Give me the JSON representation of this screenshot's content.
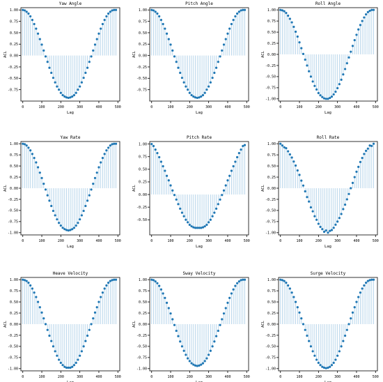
{
  "chart_data": [
    {
      "type": "stem",
      "title": "Yaw Angle",
      "xlabel": "Lag",
      "ylabel": "ACL",
      "xlim": [
        -10,
        510
      ],
      "ylim": [
        -1,
        1.05
      ],
      "xticks": [
        "0",
        "100",
        "200",
        "300",
        "400",
        "500"
      ],
      "yticks": [
        "1.00",
        "0.75",
        "0.50",
        "0.25",
        "0.00",
        "-0.25",
        "-0.50",
        "-0.75"
      ],
      "x": [
        0,
        10,
        20,
        30,
        40,
        50,
        60,
        70,
        80,
        90,
        100,
        110,
        120,
        130,
        140,
        150,
        160,
        170,
        180,
        190,
        200,
        210,
        220,
        230,
        240,
        250,
        260,
        270,
        280,
        290,
        300,
        310,
        320,
        330,
        340,
        350,
        360,
        370,
        380,
        390,
        400,
        410,
        420,
        430,
        440,
        450,
        460,
        470,
        480,
        490
      ],
      "values": [
        1.0,
        0.99,
        0.96,
        0.92,
        0.86,
        0.78,
        0.69,
        0.59,
        0.48,
        0.36,
        0.24,
        0.11,
        -0.02,
        -0.14,
        -0.27,
        -0.38,
        -0.49,
        -0.59,
        -0.68,
        -0.75,
        -0.82,
        -0.87,
        -0.9,
        -0.92,
        -0.93,
        -0.92,
        -0.9,
        -0.87,
        -0.82,
        -0.75,
        -0.68,
        -0.59,
        -0.49,
        -0.38,
        -0.27,
        -0.14,
        -0.02,
        0.11,
        0.24,
        0.36,
        0.48,
        0.59,
        0.69,
        0.78,
        0.86,
        0.92,
        0.96,
        0.99,
        1.0,
        1.0
      ]
    },
    {
      "type": "stem",
      "title": "Pitch Angle",
      "xlabel": "Lag",
      "ylabel": "ACL",
      "xlim": [
        -10,
        510
      ],
      "ylim": [
        -1,
        1.05
      ],
      "xticks": [
        "0",
        "100",
        "200",
        "300",
        "400",
        "500"
      ],
      "yticks": [
        "1.00",
        "0.75",
        "0.50",
        "0.25",
        "0.00",
        "-0.25",
        "-0.50",
        "-0.75"
      ],
      "x": [
        0,
        10,
        20,
        30,
        40,
        50,
        60,
        70,
        80,
        90,
        100,
        110,
        120,
        130,
        140,
        150,
        160,
        170,
        180,
        190,
        200,
        210,
        220,
        230,
        240,
        250,
        260,
        270,
        280,
        290,
        300,
        310,
        320,
        330,
        340,
        350,
        360,
        370,
        380,
        390,
        400,
        410,
        420,
        430,
        440,
        450,
        460,
        470,
        480,
        490
      ],
      "values": [
        1.0,
        0.99,
        0.96,
        0.92,
        0.86,
        0.78,
        0.69,
        0.59,
        0.48,
        0.36,
        0.24,
        0.11,
        -0.02,
        -0.14,
        -0.27,
        -0.38,
        -0.49,
        -0.59,
        -0.68,
        -0.75,
        -0.82,
        -0.87,
        -0.9,
        -0.92,
        -0.93,
        -0.92,
        -0.9,
        -0.87,
        -0.82,
        -0.75,
        -0.68,
        -0.59,
        -0.49,
        -0.38,
        -0.27,
        -0.14,
        -0.02,
        0.11,
        0.24,
        0.36,
        0.48,
        0.59,
        0.69,
        0.78,
        0.86,
        0.92,
        0.96,
        0.99,
        1.0,
        1.0
      ]
    },
    {
      "type": "stem",
      "title": "Roll Angle",
      "xlabel": "Lag",
      "ylabel": "ACL",
      "xlim": [
        -10,
        510
      ],
      "ylim": [
        -1.05,
        1.05
      ],
      "xticks": [
        "0",
        "100",
        "200",
        "300",
        "400",
        "500"
      ],
      "yticks": [
        "1.00",
        "0.75",
        "0.50",
        "0.25",
        "0.00",
        "-0.25",
        "-0.50",
        "-0.75",
        "-1.00"
      ],
      "x": [
        0,
        10,
        20,
        30,
        40,
        50,
        60,
        70,
        80,
        90,
        100,
        110,
        120,
        130,
        140,
        150,
        160,
        170,
        180,
        190,
        200,
        210,
        220,
        230,
        240,
        250,
        260,
        270,
        280,
        290,
        300,
        310,
        320,
        330,
        340,
        350,
        360,
        370,
        380,
        390,
        400,
        410,
        420,
        430,
        440,
        450,
        460,
        470,
        480,
        490
      ],
      "values": [
        1.0,
        0.99,
        0.97,
        0.93,
        0.87,
        0.8,
        0.72,
        0.62,
        0.51,
        0.4,
        0.27,
        0.14,
        0.01,
        -0.12,
        -0.25,
        -0.38,
        -0.5,
        -0.61,
        -0.71,
        -0.79,
        -0.87,
        -0.92,
        -0.96,
        -0.99,
        -1.0,
        -1.0,
        -0.98,
        -0.95,
        -0.9,
        -0.84,
        -0.76,
        -0.67,
        -0.57,
        -0.45,
        -0.33,
        -0.2,
        -0.07,
        0.06,
        0.19,
        0.32,
        0.44,
        0.56,
        0.66,
        0.75,
        0.83,
        0.9,
        0.95,
        0.98,
        1.0,
        1.0
      ]
    },
    {
      "type": "stem",
      "title": "Yaw Rate",
      "xlabel": "Lag",
      "ylabel": "ACL",
      "xlim": [
        -10,
        510
      ],
      "ylim": [
        -1.05,
        1.05
      ],
      "xticks": [
        "0",
        "100",
        "200",
        "300",
        "400",
        "500"
      ],
      "yticks": [
        "1.00",
        "0.75",
        "0.50",
        "0.25",
        "0.00",
        "-0.25",
        "-0.50",
        "-0.75",
        "-1.00"
      ],
      "x": [
        0,
        10,
        20,
        30,
        40,
        50,
        60,
        70,
        80,
        90,
        100,
        110,
        120,
        130,
        140,
        150,
        160,
        170,
        180,
        190,
        200,
        210,
        220,
        230,
        240,
        250,
        260,
        270,
        280,
        290,
        300,
        310,
        320,
        330,
        340,
        350,
        360,
        370,
        380,
        390,
        400,
        410,
        420,
        430,
        440,
        450,
        460,
        470,
        480,
        490
      ],
      "values": [
        1.0,
        0.99,
        0.96,
        0.91,
        0.85,
        0.77,
        0.68,
        0.58,
        0.47,
        0.35,
        0.23,
        0.1,
        -0.03,
        -0.16,
        -0.28,
        -0.4,
        -0.51,
        -0.61,
        -0.7,
        -0.78,
        -0.84,
        -0.89,
        -0.92,
        -0.94,
        -0.95,
        -0.94,
        -0.92,
        -0.89,
        -0.84,
        -0.78,
        -0.7,
        -0.61,
        -0.51,
        -0.4,
        -0.28,
        -0.16,
        -0.03,
        0.1,
        0.23,
        0.35,
        0.47,
        0.58,
        0.68,
        0.77,
        0.85,
        0.91,
        0.96,
        0.99,
        1.0,
        1.0
      ]
    },
    {
      "type": "stem",
      "title": "Pitch Rate",
      "xlabel": "Lag",
      "ylabel": "ACL",
      "xlim": [
        -10,
        510
      ],
      "ylim": [
        -0.8,
        1.05
      ],
      "xticks": [
        "0",
        "100",
        "200",
        "300",
        "400",
        "500"
      ],
      "yticks": [
        "1.00",
        "0.75",
        "0.50",
        "0.25",
        "0.00",
        "-0.25",
        "-0.50"
      ],
      "x": [
        0,
        10,
        20,
        30,
        40,
        50,
        60,
        70,
        80,
        90,
        100,
        110,
        120,
        130,
        140,
        150,
        160,
        170,
        180,
        190,
        200,
        210,
        220,
        230,
        240,
        250,
        260,
        270,
        280,
        290,
        300,
        310,
        320,
        330,
        340,
        350,
        360,
        370,
        380,
        390,
        400,
        410,
        420,
        430,
        440,
        450,
        460,
        470,
        480,
        490
      ],
      "values": [
        1.0,
        0.96,
        0.89,
        0.82,
        0.74,
        0.65,
        0.56,
        0.47,
        0.37,
        0.28,
        0.18,
        0.08,
        -0.01,
        -0.1,
        -0.19,
        -0.28,
        -0.36,
        -0.43,
        -0.5,
        -0.55,
        -0.6,
        -0.63,
        -0.65,
        -0.66,
        -0.66,
        -0.66,
        -0.66,
        -0.65,
        -0.63,
        -0.6,
        -0.55,
        -0.5,
        -0.43,
        -0.36,
        -0.28,
        -0.19,
        -0.1,
        -0.01,
        0.08,
        0.18,
        0.28,
        0.37,
        0.47,
        0.56,
        0.65,
        0.74,
        0.82,
        0.89,
        0.96,
        0.98
      ]
    },
    {
      "type": "stem",
      "title": "Roll Rate",
      "xlabel": "Lag",
      "ylabel": "ACL",
      "xlim": [
        -10,
        510
      ],
      "ylim": [
        -1.05,
        1.05
      ],
      "xticks": [
        "0",
        "100",
        "200",
        "300",
        "400",
        "500"
      ],
      "yticks": [
        "1.00",
        "0.75",
        "0.50",
        "0.25",
        "0.00",
        "-0.25",
        "-0.50",
        "-0.75",
        "-1.00"
      ],
      "x": [
        0,
        10,
        20,
        30,
        40,
        50,
        60,
        70,
        80,
        90,
        100,
        110,
        120,
        130,
        140,
        150,
        160,
        170,
        180,
        190,
        200,
        210,
        220,
        230,
        240,
        250,
        260,
        270,
        280,
        290,
        300,
        310,
        320,
        330,
        340,
        350,
        360,
        370,
        380,
        390,
        400,
        410,
        420,
        430,
        440,
        450,
        460,
        470,
        480,
        490
      ],
      "values": [
        1.0,
        0.96,
        0.92,
        0.9,
        0.83,
        0.76,
        0.69,
        0.6,
        0.51,
        0.4,
        0.3,
        0.17,
        0.06,
        -0.07,
        -0.2,
        -0.3,
        -0.43,
        -0.52,
        -0.63,
        -0.71,
        -0.8,
        -0.87,
        -0.92,
        -0.98,
        -0.95,
        -1.0,
        -0.96,
        -0.94,
        -0.89,
        -0.82,
        -0.75,
        -0.67,
        -0.58,
        -0.47,
        -0.37,
        -0.25,
        -0.13,
        0.0,
        0.12,
        0.25,
        0.37,
        0.48,
        0.59,
        0.68,
        0.77,
        0.84,
        0.89,
        0.96,
        0.95,
        1.0
      ]
    },
    {
      "type": "stem",
      "title": "Heave Velocity",
      "xlabel": "Lag",
      "ylabel": "ACL",
      "xlim": [
        -10,
        510
      ],
      "ylim": [
        -1.05,
        1.05
      ],
      "xticks": [
        "0",
        "100",
        "200",
        "300",
        "400",
        "500"
      ],
      "yticks": [
        "1.00",
        "0.75",
        "0.50",
        "0.25",
        "0.00",
        "-0.25",
        "-0.50",
        "-0.75",
        "-1.00"
      ],
      "x": [
        0,
        10,
        20,
        30,
        40,
        50,
        60,
        70,
        80,
        90,
        100,
        110,
        120,
        130,
        140,
        150,
        160,
        170,
        180,
        190,
        200,
        210,
        220,
        230,
        240,
        250,
        260,
        270,
        280,
        290,
        300,
        310,
        320,
        330,
        340,
        350,
        360,
        370,
        380,
        390,
        400,
        410,
        420,
        430,
        440,
        450,
        460,
        470,
        480,
        490
      ],
      "values": [
        1.0,
        0.99,
        0.97,
        0.93,
        0.87,
        0.8,
        0.71,
        0.61,
        0.5,
        0.38,
        0.26,
        0.13,
        0.0,
        -0.13,
        -0.26,
        -0.38,
        -0.5,
        -0.61,
        -0.71,
        -0.8,
        -0.87,
        -0.92,
        -0.96,
        -0.98,
        -0.98,
        -0.98,
        -0.96,
        -0.92,
        -0.87,
        -0.8,
        -0.71,
        -0.61,
        -0.5,
        -0.38,
        -0.26,
        -0.13,
        0.0,
        0.13,
        0.26,
        0.38,
        0.5,
        0.61,
        0.71,
        0.8,
        0.87,
        0.93,
        0.97,
        0.99,
        1.0,
        1.0
      ]
    },
    {
      "type": "stem",
      "title": "Sway Velocity",
      "xlabel": "Lag",
      "ylabel": "ACL",
      "xlim": [
        -10,
        510
      ],
      "ylim": [
        -1.05,
        1.05
      ],
      "xticks": [
        "0",
        "100",
        "200",
        "300",
        "400",
        "500"
      ],
      "yticks": [
        "1.00",
        "0.75",
        "0.50",
        "0.25",
        "0.00",
        "-0.25",
        "-0.50",
        "-0.75",
        "-1.00"
      ],
      "x": [
        0,
        10,
        20,
        30,
        40,
        50,
        60,
        70,
        80,
        90,
        100,
        110,
        120,
        130,
        140,
        150,
        160,
        170,
        180,
        190,
        200,
        210,
        220,
        230,
        240,
        250,
        260,
        270,
        280,
        290,
        300,
        310,
        320,
        330,
        340,
        350,
        360,
        370,
        380,
        390,
        400,
        410,
        420,
        430,
        440,
        450,
        460,
        470,
        480,
        490
      ],
      "values": [
        1.0,
        0.99,
        0.96,
        0.92,
        0.86,
        0.78,
        0.69,
        0.59,
        0.48,
        0.36,
        0.24,
        0.11,
        -0.02,
        -0.15,
        -0.27,
        -0.39,
        -0.5,
        -0.6,
        -0.69,
        -0.77,
        -0.83,
        -0.88,
        -0.91,
        -0.93,
        -0.94,
        -0.93,
        -0.91,
        -0.88,
        -0.83,
        -0.77,
        -0.69,
        -0.6,
        -0.5,
        -0.39,
        -0.27,
        -0.15,
        -0.02,
        0.11,
        0.24,
        0.36,
        0.48,
        0.59,
        0.69,
        0.78,
        0.86,
        0.92,
        0.96,
        0.99,
        1.0,
        1.0
      ]
    },
    {
      "type": "stem",
      "title": "Surge Velocity",
      "xlabel": "Lag",
      "ylabel": "ACL",
      "xlim": [
        -10,
        510
      ],
      "ylim": [
        -1.05,
        1.05
      ],
      "xticks": [
        "0",
        "100",
        "200",
        "300",
        "400",
        "500"
      ],
      "yticks": [
        "1.00",
        "0.75",
        "0.50",
        "0.25",
        "0.00",
        "-0.25",
        "-0.50",
        "-0.75",
        "-1.00"
      ],
      "x": [
        0,
        10,
        20,
        30,
        40,
        50,
        60,
        70,
        80,
        90,
        100,
        110,
        120,
        130,
        140,
        150,
        160,
        170,
        180,
        190,
        200,
        210,
        220,
        230,
        240,
        250,
        260,
        270,
        280,
        290,
        300,
        310,
        320,
        330,
        340,
        350,
        360,
        370,
        380,
        390,
        400,
        410,
        420,
        430,
        440,
        450,
        460,
        470,
        480,
        490
      ],
      "values": [
        1.0,
        0.99,
        0.97,
        0.93,
        0.87,
        0.8,
        0.71,
        0.61,
        0.5,
        0.38,
        0.26,
        0.13,
        0.0,
        -0.13,
        -0.26,
        -0.38,
        -0.5,
        -0.61,
        -0.71,
        -0.8,
        -0.87,
        -0.92,
        -0.96,
        -0.98,
        -0.99,
        -0.98,
        -0.96,
        -0.92,
        -0.87,
        -0.8,
        -0.71,
        -0.61,
        -0.5,
        -0.38,
        -0.26,
        -0.13,
        0.0,
        0.13,
        0.26,
        0.38,
        0.5,
        0.61,
        0.71,
        0.8,
        0.87,
        0.93,
        0.97,
        0.99,
        1.0,
        1.0
      ]
    }
  ],
  "colors": {
    "marker": "#1f77b4",
    "stem": "#a9cde6",
    "axis": "#000000"
  }
}
